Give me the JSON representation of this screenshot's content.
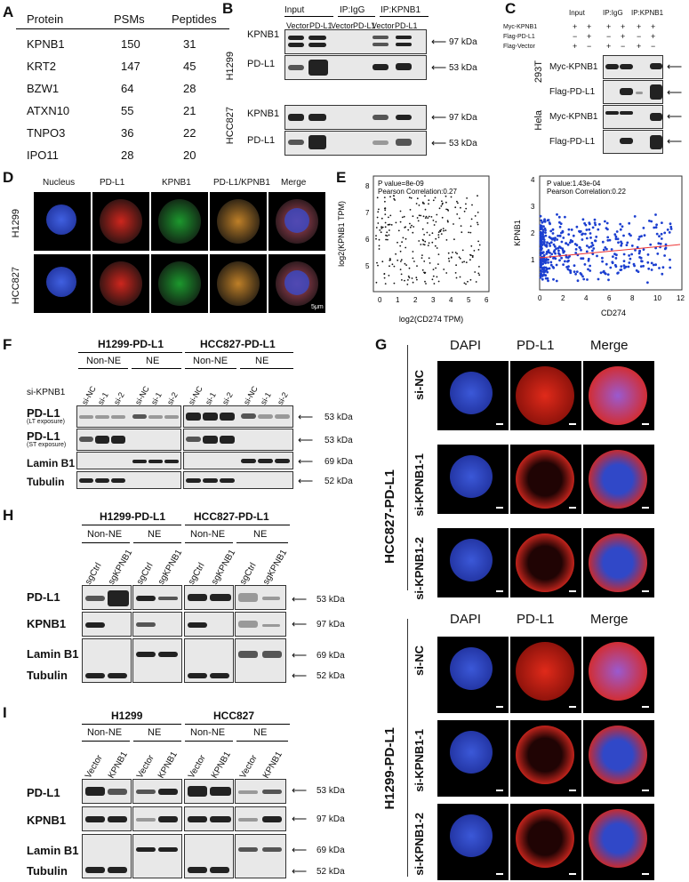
{
  "panels": {
    "A": "A",
    "B": "B",
    "C": "C",
    "D": "D",
    "E": "E",
    "F": "F",
    "G": "G",
    "H": "H",
    "I": "I"
  },
  "tableA": {
    "headers": [
      "Protein",
      "PSMs",
      "Peptides"
    ],
    "rows": [
      [
        "KPNB1",
        "150",
        "31"
      ],
      [
        "KRT2",
        "147",
        "45"
      ],
      [
        "BZW1",
        "64",
        "28"
      ],
      [
        "ATXN10",
        "55",
        "21"
      ],
      [
        "TNPO3",
        "36",
        "22"
      ],
      [
        "IPO11",
        "28",
        "20"
      ]
    ]
  },
  "panelB": {
    "groups": [
      "Input",
      "IP:IgG",
      "IP:KPNB1"
    ],
    "lanes": [
      "Vector",
      "PD-L1",
      "Vector",
      "PD-L1",
      "Vector",
      "PD-L1"
    ],
    "cells": [
      "H1299",
      "HCC827"
    ],
    "rows": [
      "KPNB1",
      "PD-L1",
      "KPNB1",
      "PD-L1"
    ],
    "kda": [
      "97 kDa",
      "53 kDa",
      "97 kDa",
      "53 kDa"
    ]
  },
  "panelC": {
    "groups": [
      "Input",
      "IP:IgG",
      "IP:KPNB1"
    ],
    "conds": [
      "Myc-KPNB1",
      "Flag-PD-L1",
      "Flag-Vector"
    ],
    "signs": [
      [
        "+",
        "+",
        "+",
        "+",
        "+",
        "+"
      ],
      [
        "−",
        "+",
        "−",
        "+",
        "−",
        "+"
      ],
      [
        "+",
        "−",
        "+",
        "−",
        "+",
        "−"
      ]
    ],
    "cells": [
      "293T",
      "Hela"
    ],
    "rows": [
      "Myc-KPNB1",
      "Flag-PD-L1",
      "Myc-KPNB1",
      "Flag-PD-L1"
    ]
  },
  "panelD": {
    "cols": [
      "Nucleus",
      "PD-L1",
      "KPNB1",
      "PD-L1/KPNB1",
      "Merge"
    ],
    "rows": [
      "H1299",
      "HCC827"
    ],
    "scale": "5μm"
  },
  "panelE": {
    "left": {
      "pval": "P value=8e-09",
      "corr": "Pearson Correlation:0.27",
      "xlabel": "log2(CD274 TPM)",
      "ylabel": "log2(KPNB1 TPM)",
      "xticks": [
        "0",
        "1",
        "2",
        "3",
        "4",
        "5",
        "6"
      ],
      "yticks": [
        "8",
        "7",
        "6",
        "5"
      ]
    },
    "right": {
      "pval": "P value:1.43e-04",
      "corr": "Pearson Correlation:0.22",
      "xlabel": "CD274",
      "ylabel": "KPNB1",
      "xticks": [
        "0",
        "2",
        "4",
        "6",
        "8",
        "10",
        "12"
      ],
      "yticks": [
        "4",
        "3",
        "2",
        "1"
      ]
    }
  },
  "panelF": {
    "titles": [
      "H1299-PD-L1",
      "HCC827-PD-L1"
    ],
    "fractions": [
      "Non-NE",
      "NE",
      "Non-NE",
      "NE"
    ],
    "rowlabel": "si-KPNB1",
    "lanes": [
      "si-NC",
      "si-1",
      "si-2",
      "si-NC",
      "si-1",
      "si-2",
      "si-NC",
      "si-1",
      "si-2",
      "si-NC",
      "si-1",
      "si-2"
    ],
    "rows": [
      "PD-L1",
      "PD-L1",
      "Lamin B1",
      "Tubulin"
    ],
    "subs": [
      "(LT exposure)",
      "(ST exposure)"
    ],
    "kda": [
      "53 kDa",
      "53 kDa",
      "69 kDa",
      "52 kDa"
    ]
  },
  "panelG": {
    "cols": [
      "DAPI",
      "PD-L1",
      "Merge"
    ],
    "sets": [
      {
        "name": "HCC827-PD-L1",
        "rows": [
          "si-NC",
          "si-KPNB1-1",
          "si-KPNB1-2"
        ]
      },
      {
        "name": "H1299-PD-L1",
        "rows": [
          "si-NC",
          "si-KPNB1-1",
          "si-KPNB1-2"
        ]
      }
    ]
  },
  "panelH": {
    "titles": [
      "H1299-PD-L1",
      "HCC827-PD-L1"
    ],
    "fractions": [
      "Non-NE",
      "NE",
      "Non-NE",
      "NE"
    ],
    "lanes": [
      "sgCtrl",
      "sgKPNB1",
      "sgCtrl",
      "sgKPNB1",
      "sgCtrl",
      "sgKPNB1",
      "sgCtrl",
      "sgKPNB1"
    ],
    "rows": [
      "PD-L1",
      "KPNB1",
      "Lamin B1",
      "Tubulin"
    ],
    "kda": [
      "53 kDa",
      "97 kDa",
      "69 kDa",
      "52 kDa"
    ]
  },
  "panelI": {
    "titles": [
      "H1299",
      "HCC827"
    ],
    "fractions": [
      "Non-NE",
      "NE",
      "Non-NE",
      "NE"
    ],
    "lanes": [
      "Vector",
      "KPNB1",
      "Vector",
      "KPNB1",
      "Vector",
      "KPNB1",
      "Vector",
      "KPNB1"
    ],
    "rows": [
      "PD-L1",
      "KPNB1",
      "Lamin B1",
      "Tubulin"
    ],
    "kda": [
      "53 kDa",
      "97 kDa",
      "69 kDa",
      "52 kDa"
    ]
  }
}
